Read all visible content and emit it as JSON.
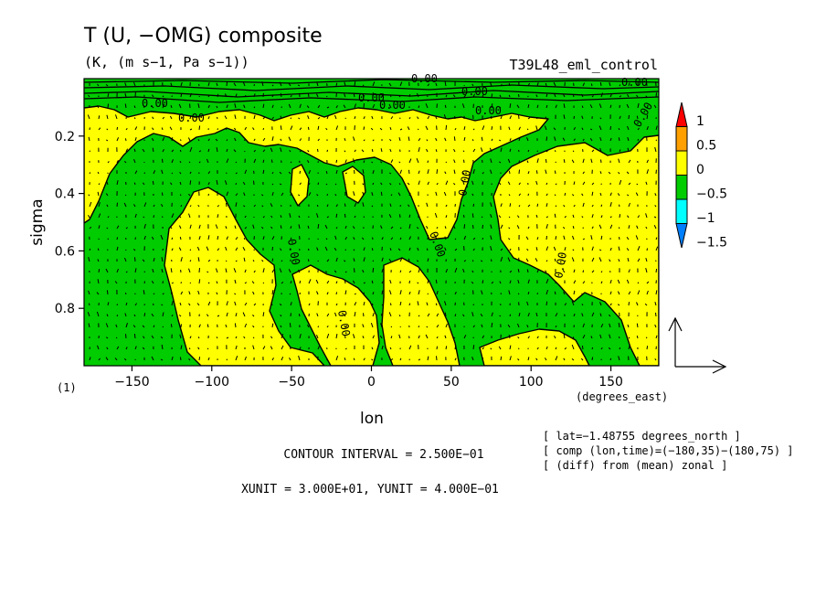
{
  "title": "T (U, −OMG) composite",
  "subtitle": "(K, (m s−1, Pa s−1))",
  "run_label": "T39L48_eml_control",
  "panel_number": "(1)",
  "x_unit_label": "(degrees_east)",
  "contour_interval": "CONTOUR INTERVAL = 2.500E−01",
  "unit_line": "XUNIT = 3.000E+01, YUNIT = 4.000E−01",
  "info_lines": [
    "[ lat=−1.48755 degrees_north ]",
    "[ comp (lon,time)=(−180,35)−(180,75) ]",
    "[ (diff) from (mean) zonal ]"
  ],
  "contour_label": "0.00",
  "colors": {
    "yellow": "#ffff00",
    "green": "#00cc00",
    "orange": "#ffa000",
    "red": "#ff0000",
    "cyan": "#00ffff",
    "blue": "#0080ff"
  },
  "chart_data": {
    "type": "heatmap",
    "title": "T (U, −OMG) composite",
    "subtitle": "(K, (m s−1, Pa s−1))",
    "xlabel": "lon",
    "ylabel": "sigma",
    "xlim": [
      -180,
      180
    ],
    "ylim": [
      1.0,
      0.0
    ],
    "x_ticks": [
      -150,
      -100,
      -50,
      0,
      50,
      100,
      150
    ],
    "x_tick_labels": [
      "−150",
      "−100",
      "−50",
      "0",
      "50",
      "100",
      "150"
    ],
    "y_ticks": [
      0.2,
      0.4,
      0.6,
      0.8
    ],
    "y_tick_labels": [
      "0.2",
      "0.4",
      "0.6",
      "0.8"
    ],
    "colorbar": {
      "levels": [
        -1.5,
        -1,
        -0.5,
        0,
        0.5,
        1
      ],
      "labels": [
        "1",
        "0.5",
        "0",
        "−0.5",
        "−1",
        "−1.5"
      ],
      "colors": [
        "#0080ff",
        "#00ffff",
        "#00cc00",
        "#ffff00",
        "#ffa000",
        "#ff0000"
      ]
    },
    "contour_interval": 0.25,
    "xunit": 30,
    "yunit": 0.4,
    "vectors": "U, −OMG"
  }
}
